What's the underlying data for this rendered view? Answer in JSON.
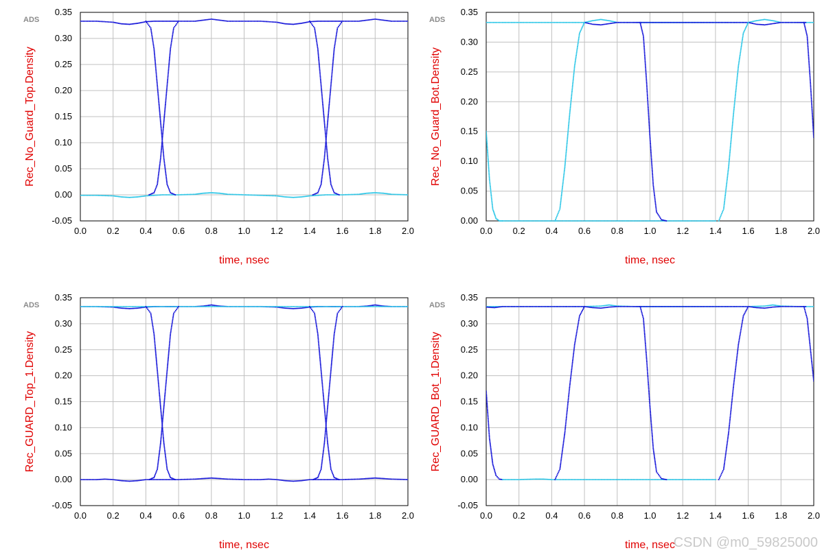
{
  "watermark": "CSDN @m0_59825000",
  "colors": {
    "series_dark": "#1010d8",
    "series_light": "#22c4e6",
    "label": "#e00000",
    "grid": "#c0c0c0",
    "axis": "#000000",
    "tag": "#8a8a8a"
  },
  "chart_data": [
    {
      "id": "top-left",
      "type": "scatter",
      "title": "",
      "tag": "ADS",
      "xlabel": "time, nsec",
      "ylabel": "Rec_No_Guard_Top.Density",
      "xlim": [
        0.0,
        2.0
      ],
      "ylim": [
        -0.05,
        0.35
      ],
      "xticks": [
        "0.0",
        "0.2",
        "0.4",
        "0.6",
        "0.8",
        "1.0",
        "1.2",
        "1.4",
        "1.6",
        "1.8",
        "2.0"
      ],
      "yticks": [
        "-0.05",
        "0.00",
        "0.05",
        "0.10",
        "0.15",
        "0.20",
        "0.25",
        "0.30",
        "0.35"
      ],
      "series": [
        {
          "name": "high level",
          "color": "dark",
          "x": [
            0.0,
            0.1,
            0.2,
            0.25,
            0.3,
            0.35,
            0.4,
            0.45,
            0.5,
            0.55,
            0.6,
            0.7,
            0.75,
            0.8,
            0.85,
            0.9,
            1.0,
            1.1,
            1.2,
            1.25,
            1.3,
            1.35,
            1.4,
            1.45,
            1.5,
            1.55,
            1.6,
            1.7,
            1.75,
            1.8,
            1.85,
            1.9,
            2.0
          ],
          "y": [
            0.333,
            0.333,
            0.331,
            0.328,
            0.327,
            0.329,
            0.332,
            0.333,
            0.333,
            0.333,
            0.333,
            0.333,
            0.335,
            0.337,
            0.335,
            0.333,
            0.333,
            0.333,
            0.331,
            0.328,
            0.327,
            0.329,
            0.332,
            0.333,
            0.333,
            0.333,
            0.333,
            0.333,
            0.335,
            0.337,
            0.335,
            0.333,
            0.333
          ]
        },
        {
          "name": "low level",
          "color": "light",
          "x": [
            0.0,
            0.1,
            0.2,
            0.25,
            0.3,
            0.35,
            0.4,
            0.5,
            0.6,
            0.7,
            0.75,
            0.8,
            0.85,
            0.9,
            1.0,
            1.1,
            1.2,
            1.25,
            1.3,
            1.35,
            1.4,
            1.5,
            1.6,
            1.7,
            1.75,
            1.8,
            1.85,
            1.9,
            2.0
          ],
          "y": [
            -0.001,
            -0.001,
            -0.002,
            -0.004,
            -0.005,
            -0.004,
            -0.002,
            0.0,
            0.0,
            0.001,
            0.003,
            0.004,
            0.003,
            0.001,
            0.0,
            -0.001,
            -0.002,
            -0.004,
            -0.005,
            -0.004,
            -0.002,
            0.0,
            0.0,
            0.001,
            0.003,
            0.004,
            0.003,
            0.001,
            0.0
          ]
        },
        {
          "name": "falling edge 1",
          "color": "dark",
          "x": [
            0.4,
            0.43,
            0.45,
            0.47,
            0.49,
            0.51,
            0.53,
            0.55,
            0.58
          ],
          "y": [
            0.333,
            0.32,
            0.28,
            0.21,
            0.14,
            0.07,
            0.02,
            0.004,
            0.0
          ]
        },
        {
          "name": "rising edge 1",
          "color": "dark",
          "x": [
            0.42,
            0.45,
            0.47,
            0.49,
            0.51,
            0.53,
            0.55,
            0.57,
            0.6
          ],
          "y": [
            0.0,
            0.004,
            0.02,
            0.07,
            0.14,
            0.21,
            0.28,
            0.32,
            0.333
          ]
        },
        {
          "name": "falling edge 2",
          "color": "dark",
          "x": [
            1.4,
            1.43,
            1.45,
            1.47,
            1.49,
            1.51,
            1.53,
            1.55,
            1.58
          ],
          "y": [
            0.333,
            0.32,
            0.28,
            0.21,
            0.14,
            0.07,
            0.02,
            0.004,
            0.0
          ]
        },
        {
          "name": "rising edge 2",
          "color": "dark",
          "x": [
            1.42,
            1.45,
            1.47,
            1.49,
            1.51,
            1.53,
            1.55,
            1.57,
            1.6
          ],
          "y": [
            0.0,
            0.004,
            0.02,
            0.07,
            0.14,
            0.21,
            0.28,
            0.32,
            0.333
          ]
        }
      ]
    },
    {
      "id": "top-right",
      "type": "scatter",
      "title": "",
      "tag": "ADS",
      "xlabel": "time, nsec",
      "ylabel": "Rec_No_Guard_Bot.Density",
      "xlim": [
        0.0,
        2.0
      ],
      "ylim": [
        0.0,
        0.35
      ],
      "xticks": [
        "0.0",
        "0.2",
        "0.4",
        "0.6",
        "0.8",
        "1.0",
        "1.2",
        "1.4",
        "1.6",
        "1.8",
        "2.0"
      ],
      "yticks": [
        "0.00",
        "0.05",
        "0.10",
        "0.15",
        "0.20",
        "0.25",
        "0.30",
        "0.35"
      ],
      "series": [
        {
          "name": "top level",
          "color": "light",
          "x": [
            0.0,
            0.2,
            0.4,
            0.6,
            0.65,
            0.7,
            0.75,
            0.8,
            0.9,
            1.0,
            1.2,
            1.4,
            1.6,
            1.65,
            1.7,
            1.75,
            1.8,
            1.9,
            2.0
          ],
          "y": [
            0.333,
            0.333,
            0.333,
            0.333,
            0.336,
            0.338,
            0.336,
            0.333,
            0.333,
            0.333,
            0.333,
            0.333,
            0.333,
            0.336,
            0.338,
            0.336,
            0.333,
            0.333,
            0.333
          ]
        },
        {
          "name": "top level ripple",
          "color": "dark",
          "x": [
            0.6,
            0.65,
            0.7,
            0.75,
            0.8,
            0.9,
            0.95,
            1.6,
            1.65,
            1.7,
            1.75,
            1.8,
            1.9,
            1.95
          ],
          "y": [
            0.333,
            0.33,
            0.329,
            0.331,
            0.333,
            0.333,
            0.333,
            0.333,
            0.33,
            0.329,
            0.331,
            0.333,
            0.333,
            0.333
          ]
        },
        {
          "name": "initial fall",
          "color": "light",
          "x": [
            0.0,
            0.02,
            0.04,
            0.06,
            0.08,
            0.1
          ],
          "y": [
            0.15,
            0.07,
            0.02,
            0.004,
            0.0,
            0.0
          ]
        },
        {
          "name": "bottom level",
          "color": "light",
          "x": [
            0.1,
            0.2,
            0.3,
            0.4,
            1.1,
            1.2,
            1.3,
            1.4
          ],
          "y": [
            0.0,
            0.0,
            0.0,
            0.0,
            0.0,
            0.0,
            0.0,
            0.0
          ]
        },
        {
          "name": "rising edge 1",
          "color": "light",
          "x": [
            0.42,
            0.45,
            0.48,
            0.51,
            0.54,
            0.57,
            0.6
          ],
          "y": [
            0.0,
            0.02,
            0.09,
            0.18,
            0.26,
            0.315,
            0.333
          ]
        },
        {
          "name": "falling edge 1",
          "color": "dark",
          "x": [
            0.94,
            0.96,
            0.98,
            1.0,
            1.02,
            1.04,
            1.07,
            1.1
          ],
          "y": [
            0.333,
            0.31,
            0.23,
            0.14,
            0.06,
            0.015,
            0.002,
            0.0
          ]
        },
        {
          "name": "rising edge 2",
          "color": "light",
          "x": [
            1.42,
            1.45,
            1.48,
            1.51,
            1.54,
            1.57,
            1.6
          ],
          "y": [
            0.0,
            0.02,
            0.09,
            0.18,
            0.26,
            0.315,
            0.333
          ]
        },
        {
          "name": "falling edge 2",
          "color": "dark",
          "x": [
            1.94,
            1.96,
            1.98,
            2.0
          ],
          "y": [
            0.333,
            0.31,
            0.23,
            0.14
          ]
        }
      ]
    },
    {
      "id": "bottom-left",
      "type": "scatter",
      "title": "",
      "tag": "ADS",
      "xlabel": "time, nsec",
      "ylabel": "Rec_GUARD_Top_1.Density",
      "xlim": [
        0.0,
        2.0
      ],
      "ylim": [
        -0.05,
        0.35
      ],
      "xticks": [
        "0.0",
        "0.2",
        "0.4",
        "0.6",
        "0.8",
        "1.0",
        "1.2",
        "1.4",
        "1.6",
        "1.8",
        "2.0"
      ],
      "yticks": [
        "-0.05",
        "0.00",
        "0.05",
        "0.10",
        "0.15",
        "0.20",
        "0.25",
        "0.30",
        "0.35"
      ],
      "series": [
        {
          "name": "high level",
          "color": "dark",
          "x": [
            0.0,
            0.1,
            0.2,
            0.25,
            0.3,
            0.35,
            0.4,
            0.45,
            0.5,
            0.55,
            0.6,
            0.7,
            0.75,
            0.8,
            0.85,
            0.9,
            1.0,
            1.1,
            1.2,
            1.25,
            1.3,
            1.35,
            1.4,
            1.45,
            1.5,
            1.55,
            1.6,
            1.7,
            1.75,
            1.8,
            1.85,
            1.9,
            2.0
          ],
          "y": [
            0.333,
            0.333,
            0.332,
            0.33,
            0.329,
            0.33,
            0.332,
            0.333,
            0.333,
            0.333,
            0.333,
            0.333,
            0.334,
            0.336,
            0.334,
            0.333,
            0.333,
            0.333,
            0.332,
            0.33,
            0.329,
            0.33,
            0.332,
            0.333,
            0.333,
            0.333,
            0.333,
            0.333,
            0.334,
            0.336,
            0.334,
            0.333,
            0.333
          ]
        },
        {
          "name": "low level",
          "color": "dark",
          "x": [
            0.0,
            0.1,
            0.15,
            0.2,
            0.25,
            0.3,
            0.35,
            0.4,
            0.5,
            0.6,
            0.7,
            0.75,
            0.8,
            0.85,
            0.9,
            1.0,
            1.1,
            1.15,
            1.2,
            1.25,
            1.3,
            1.35,
            1.4,
            1.5,
            1.6,
            1.7,
            1.75,
            1.8,
            1.85,
            1.9,
            2.0
          ],
          "y": [
            0.0,
            0.0,
            0.001,
            0.0,
            -0.002,
            -0.003,
            -0.002,
            0.0,
            0.0,
            0.0,
            0.001,
            0.002,
            0.003,
            0.002,
            0.001,
            0.0,
            0.0,
            0.001,
            0.0,
            -0.002,
            -0.003,
            -0.002,
            0.0,
            0.0,
            0.0,
            0.001,
            0.002,
            0.003,
            0.002,
            0.001,
            0.0
          ]
        },
        {
          "name": "light trace",
          "color": "light",
          "x": [
            0.0,
            0.2,
            0.4,
            0.6,
            0.8,
            1.0,
            1.2,
            1.4,
            1.6,
            1.8,
            2.0
          ],
          "y": [
            0.333,
            0.333,
            0.333,
            0.333,
            0.333,
            0.333,
            0.333,
            0.333,
            0.333,
            0.333,
            0.333
          ]
        },
        {
          "name": "falling edge 1",
          "color": "dark",
          "x": [
            0.4,
            0.43,
            0.45,
            0.47,
            0.49,
            0.51,
            0.53,
            0.55,
            0.58
          ],
          "y": [
            0.333,
            0.32,
            0.28,
            0.21,
            0.14,
            0.07,
            0.02,
            0.004,
            0.0
          ]
        },
        {
          "name": "rising edge 1",
          "color": "dark",
          "x": [
            0.42,
            0.45,
            0.47,
            0.49,
            0.51,
            0.53,
            0.55,
            0.57,
            0.6
          ],
          "y": [
            0.0,
            0.004,
            0.02,
            0.07,
            0.14,
            0.21,
            0.28,
            0.32,
            0.333
          ]
        },
        {
          "name": "falling edge 2",
          "color": "dark",
          "x": [
            1.4,
            1.43,
            1.45,
            1.47,
            1.49,
            1.51,
            1.53,
            1.55,
            1.58
          ],
          "y": [
            0.333,
            0.32,
            0.28,
            0.21,
            0.14,
            0.07,
            0.02,
            0.004,
            0.0
          ]
        },
        {
          "name": "rising edge 2",
          "color": "dark",
          "x": [
            1.42,
            1.45,
            1.47,
            1.49,
            1.51,
            1.53,
            1.55,
            1.57,
            1.6
          ],
          "y": [
            0.0,
            0.004,
            0.02,
            0.07,
            0.14,
            0.21,
            0.28,
            0.32,
            0.333
          ]
        }
      ]
    },
    {
      "id": "bottom-right",
      "type": "scatter",
      "title": "",
      "tag": "ADS",
      "xlabel": "time, nsec",
      "ylabel": "Rec_GUARD_Bot_1.Density",
      "xlim": [
        0.0,
        2.0
      ],
      "ylim": [
        -0.05,
        0.35
      ],
      "xticks": [
        "0.0",
        "0.2",
        "0.4",
        "0.6",
        "0.8",
        "1.0",
        "1.2",
        "1.4",
        "1.6",
        "1.8",
        "2.0"
      ],
      "yticks": [
        "-0.05",
        "0.00",
        "0.05",
        "0.10",
        "0.15",
        "0.20",
        "0.25",
        "0.30",
        "0.35"
      ],
      "series": [
        {
          "name": "top level",
          "color": "light",
          "x": [
            0.0,
            0.2,
            0.4,
            0.6,
            0.7,
            0.75,
            0.8,
            0.9,
            1.0,
            1.2,
            1.4,
            1.6,
            1.7,
            1.75,
            1.8,
            1.9,
            2.0
          ],
          "y": [
            0.333,
            0.333,
            0.333,
            0.333,
            0.334,
            0.336,
            0.334,
            0.333,
            0.333,
            0.333,
            0.333,
            0.333,
            0.334,
            0.336,
            0.334,
            0.333,
            0.333
          ]
        },
        {
          "name": "top level ripple",
          "color": "dark",
          "x": [
            0.0,
            0.05,
            0.1,
            0.6,
            0.65,
            0.7,
            0.75,
            0.8,
            0.9,
            0.95,
            1.6,
            1.65,
            1.7,
            1.75,
            1.8,
            1.9,
            1.95
          ],
          "y": [
            0.332,
            0.331,
            0.333,
            0.333,
            0.331,
            0.33,
            0.332,
            0.333,
            0.333,
            0.333,
            0.333,
            0.331,
            0.33,
            0.332,
            0.333,
            0.333,
            0.333
          ]
        },
        {
          "name": "initial fall",
          "color": "dark",
          "x": [
            0.0,
            0.02,
            0.04,
            0.06,
            0.08,
            0.1
          ],
          "y": [
            0.17,
            0.08,
            0.03,
            0.008,
            0.001,
            0.0
          ]
        },
        {
          "name": "bottom level",
          "color": "light",
          "x": [
            0.1,
            0.2,
            0.3,
            0.35,
            0.4,
            1.1,
            1.2,
            1.3,
            1.4
          ],
          "y": [
            0.0,
            0.0,
            0.001,
            0.001,
            0.0,
            0.0,
            0.0,
            0.0,
            0.0
          ]
        },
        {
          "name": "rising edge 1",
          "color": "dark",
          "x": [
            0.42,
            0.45,
            0.48,
            0.51,
            0.54,
            0.57,
            0.6
          ],
          "y": [
            0.0,
            0.02,
            0.09,
            0.18,
            0.26,
            0.315,
            0.333
          ]
        },
        {
          "name": "falling edge 1",
          "color": "dark",
          "x": [
            0.94,
            0.96,
            0.98,
            1.0,
            1.02,
            1.04,
            1.07,
            1.1
          ],
          "y": [
            0.333,
            0.31,
            0.23,
            0.14,
            0.06,
            0.015,
            0.002,
            0.0
          ]
        },
        {
          "name": "rising edge 2",
          "color": "dark",
          "x": [
            1.42,
            1.45,
            1.48,
            1.51,
            1.54,
            1.57,
            1.6
          ],
          "y": [
            0.0,
            0.02,
            0.09,
            0.18,
            0.26,
            0.315,
            0.333
          ]
        },
        {
          "name": "falling edge 2",
          "color": "dark",
          "x": [
            1.94,
            1.96,
            1.98,
            2.0
          ],
          "y": [
            0.333,
            0.31,
            0.25,
            0.19
          ]
        }
      ]
    }
  ]
}
